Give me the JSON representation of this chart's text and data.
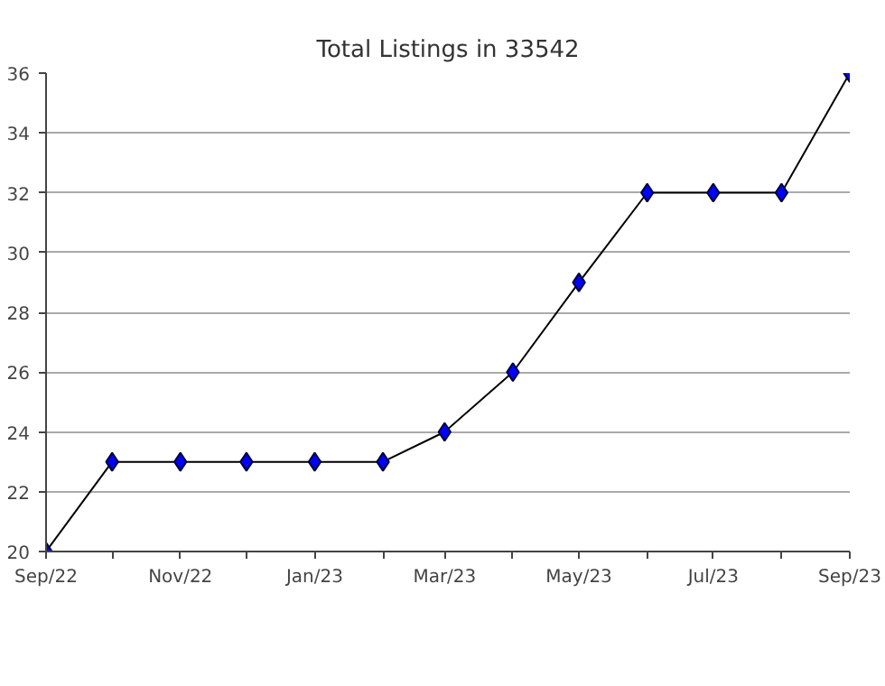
{
  "chart_data": {
    "type": "line",
    "title": "Total Listings in 33542",
    "x": [
      "2022-09",
      "2022-10",
      "2022-11",
      "2022-12",
      "2023-01",
      "2023-02",
      "2023-03",
      "2023-04",
      "2023-05",
      "2023-06",
      "2023-07",
      "2023-08",
      "2023-09"
    ],
    "series": [
      {
        "color": "#0000ff",
        "values": [
          20,
          23,
          23,
          23,
          23,
          23,
          24,
          26,
          29,
          32,
          32,
          32,
          36
        ]
      }
    ],
    "xlim": [
      "2022-09",
      "2023-09"
    ],
    "xticks": [
      {
        "value": "2022-09",
        "label": "Sep/22"
      },
      {
        "value": "2022-10",
        "label": null
      },
      {
        "value": "2022-11",
        "label": "Nov/22"
      },
      {
        "value": "2022-12",
        "label": null
      },
      {
        "value": "2023-01",
        "label": "Jan/23"
      },
      {
        "value": "2023-02",
        "label": null
      },
      {
        "value": "2023-03",
        "label": "Mar/23"
      },
      {
        "value": "2023-04",
        "label": null
      },
      {
        "value": "2023-05",
        "label": "May/23"
      },
      {
        "value": "2023-06",
        "label": null
      },
      {
        "value": "2023-07",
        "label": "Jul/23"
      },
      {
        "value": "2023-08",
        "label": null
      },
      {
        "value": "2023-09",
        "label": "Sep/23"
      }
    ],
    "ylim": [
      20,
      36
    ],
    "yticks": [
      20,
      22,
      24,
      26,
      28,
      30,
      32,
      34,
      36
    ],
    "grid": "y",
    "marker": "diamond",
    "line_style": "solid"
  }
}
